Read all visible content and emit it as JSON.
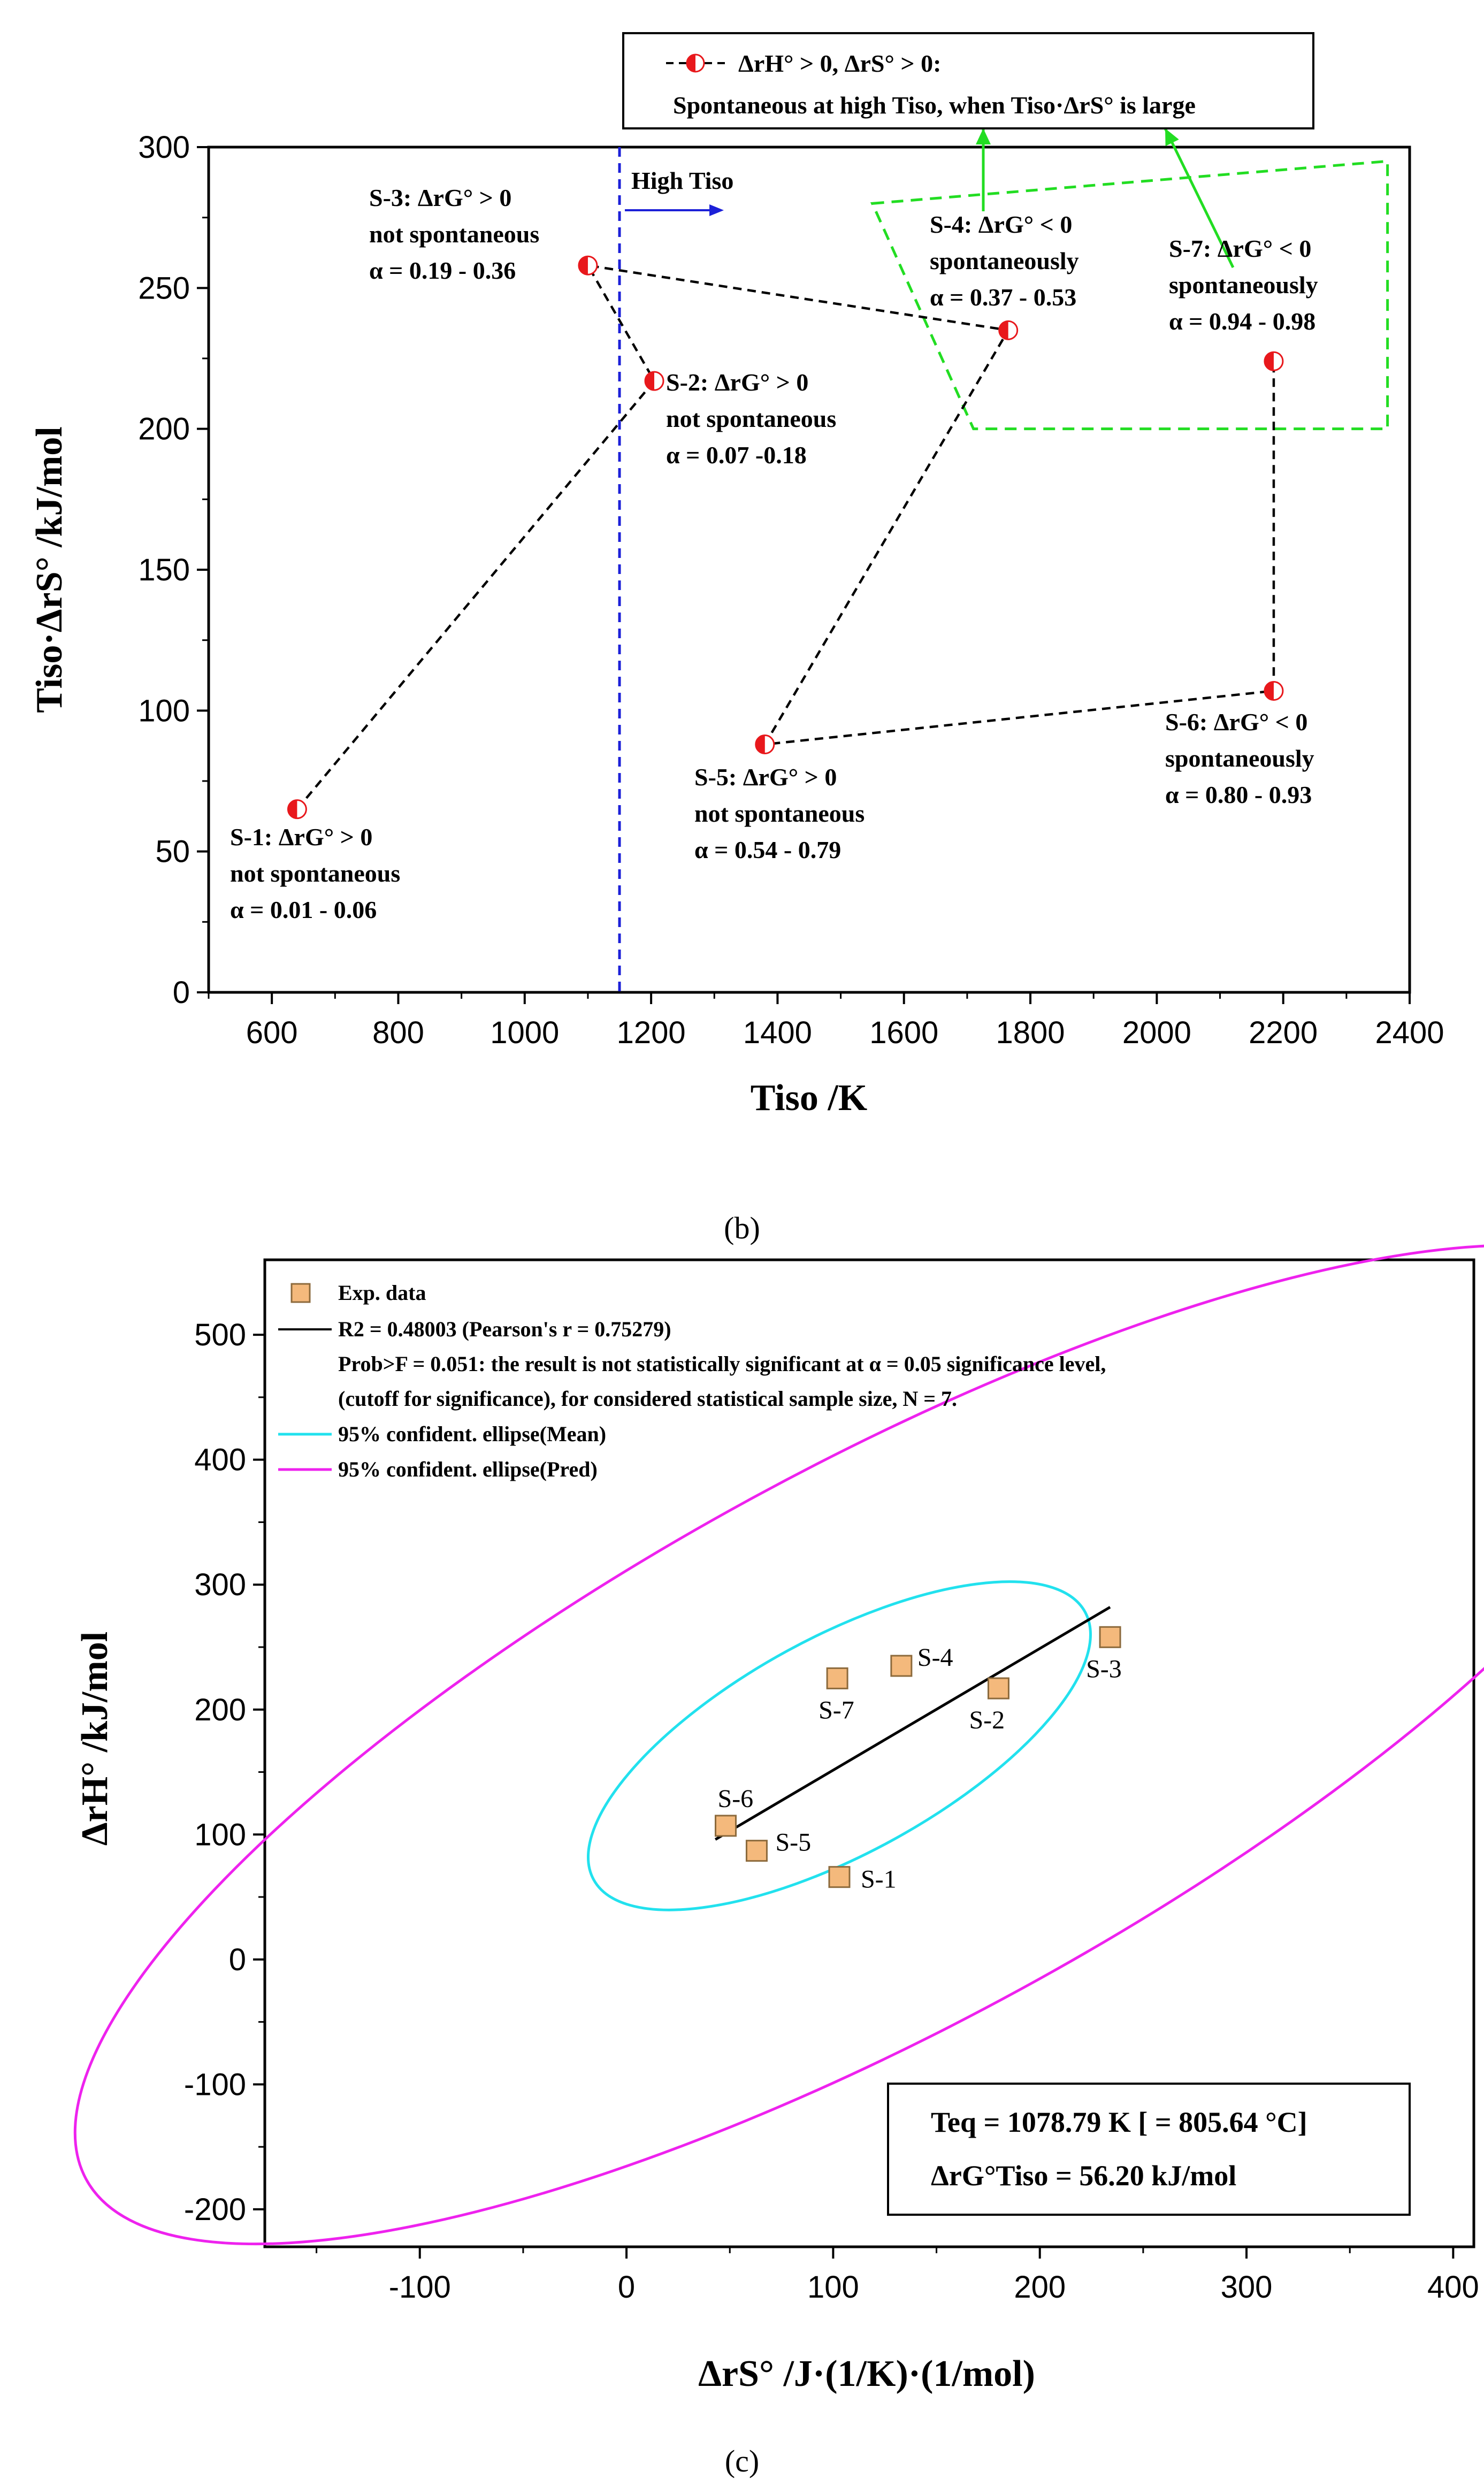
{
  "colors": {
    "marker_red": "#e8181c",
    "green": "#22dd22",
    "blue": "#1c20d8",
    "square_fill": "#f4b97c",
    "square_edge": "#8c6a3c",
    "cyan": "#22e1ee",
    "magenta": "#ee22ee",
    "black": "#000000"
  },
  "panel_b": {
    "label": "(b)",
    "legend": {
      "line1": "ΔrH° > 0, ΔrS° > 0:",
      "line2": "Spontaneous at high Tiso, when Tiso·ΔrS° is large"
    },
    "high_tiso_label": "High Tiso",
    "chart_data": {
      "type": "scatter",
      "title": "",
      "xlabel": "Tiso /K",
      "ylabel": "Tiso·ΔrS° /kJ/mol",
      "xlim": [
        500,
        2400
      ],
      "ylim": [
        0,
        300
      ],
      "xticks": [
        600,
        800,
        1000,
        1200,
        1400,
        1600,
        1800,
        2000,
        2200,
        2400
      ],
      "yticks": [
        0,
        50,
        100,
        150,
        200,
        250,
        300
      ],
      "threshold_x": 1150,
      "points": [
        {
          "id": "S-1",
          "x": 640,
          "y": 65,
          "label": "S-1: ΔrG° > 0",
          "status": "not spontaneous",
          "alpha": "α = 0.01 - 0.06"
        },
        {
          "id": "S-2",
          "x": 1205,
          "y": 217,
          "label": "S-2: ΔrG° > 0",
          "status": "not spontaneous",
          "alpha": "α = 0.07 -0.18"
        },
        {
          "id": "S-3",
          "x": 1100,
          "y": 258,
          "label": "S-3: ΔrG° > 0",
          "status": "not spontaneous",
          "alpha": "α = 0.19 - 0.36"
        },
        {
          "id": "S-4",
          "x": 1765,
          "y": 235,
          "label": "S-4: ΔrG° < 0",
          "status": "spontaneously",
          "alpha": "α = 0.37 - 0.53"
        },
        {
          "id": "S-5",
          "x": 1380,
          "y": 88,
          "label": "S-5: ΔrG° > 0",
          "status": "not spontaneous",
          "alpha": "α = 0.54 - 0.79"
        },
        {
          "id": "S-6",
          "x": 2185,
          "y": 107,
          "label": "S-6: ΔrG° < 0",
          "status": "spontaneously",
          "alpha": "α = 0.80 - 0.93"
        },
        {
          "id": "S-7",
          "x": 2185,
          "y": 224,
          "label": "S-7: ΔrG° < 0",
          "status": "spontaneously",
          "alpha": "α = 0.94 - 0.98"
        }
      ]
    }
  },
  "panel_c": {
    "label": "(c)",
    "legend": [
      "Exp. data",
      "R2 = 0.48003 (Pearson's r = 0.75279)",
      "Prob>F = 0.051: the result is not statistically significant at α = 0.05 significance level,",
      "(cutoff for significance), for considered statistical sample size, N = 7.",
      "95% confident. ellipse(Mean)",
      "95% confident. ellipse(Pred)"
    ],
    "annotation": {
      "line1": "Teq = 1078.79 K [ = 805.64 °C]",
      "line2": "ΔrG°Tiso = 56.20 kJ/mol"
    },
    "chart_data": {
      "type": "scatter",
      "title": "",
      "xlabel": "ΔrS° /J·(1/K)·(1/mol)",
      "ylabel": "ΔrH° /kJ/mol",
      "xlim": [
        -175,
        410
      ],
      "ylim": [
        -230,
        560
      ],
      "xticks": [
        -100,
        0,
        100,
        200,
        300,
        400
      ],
      "yticks": [
        -200,
        -100,
        0,
        100,
        200,
        300,
        400,
        500
      ],
      "points": [
        {
          "id": "S-1",
          "x": 103,
          "y": 66
        },
        {
          "id": "S-2",
          "x": 180,
          "y": 217
        },
        {
          "id": "S-3",
          "x": 234,
          "y": 258
        },
        {
          "id": "S-4",
          "x": 133,
          "y": 235
        },
        {
          "id": "S-5",
          "x": 63,
          "y": 87
        },
        {
          "id": "S-6",
          "x": 48,
          "y": 107
        },
        {
          "id": "S-7",
          "x": 102,
          "y": 225
        }
      ],
      "fit_line": {
        "x": [
          43,
          234
        ],
        "y": [
          96,
          282
        ]
      },
      "ellipse_mean": {
        "center": [
          103,
          171
        ],
        "semi_major": 160,
        "semi_minor": 65,
        "angle_deg": 42
      },
      "ellipse_pred": {
        "center": [
          125,
          172
        ],
        "semi_major": 520,
        "semi_minor": 168,
        "angle_deg": 42
      }
    }
  }
}
